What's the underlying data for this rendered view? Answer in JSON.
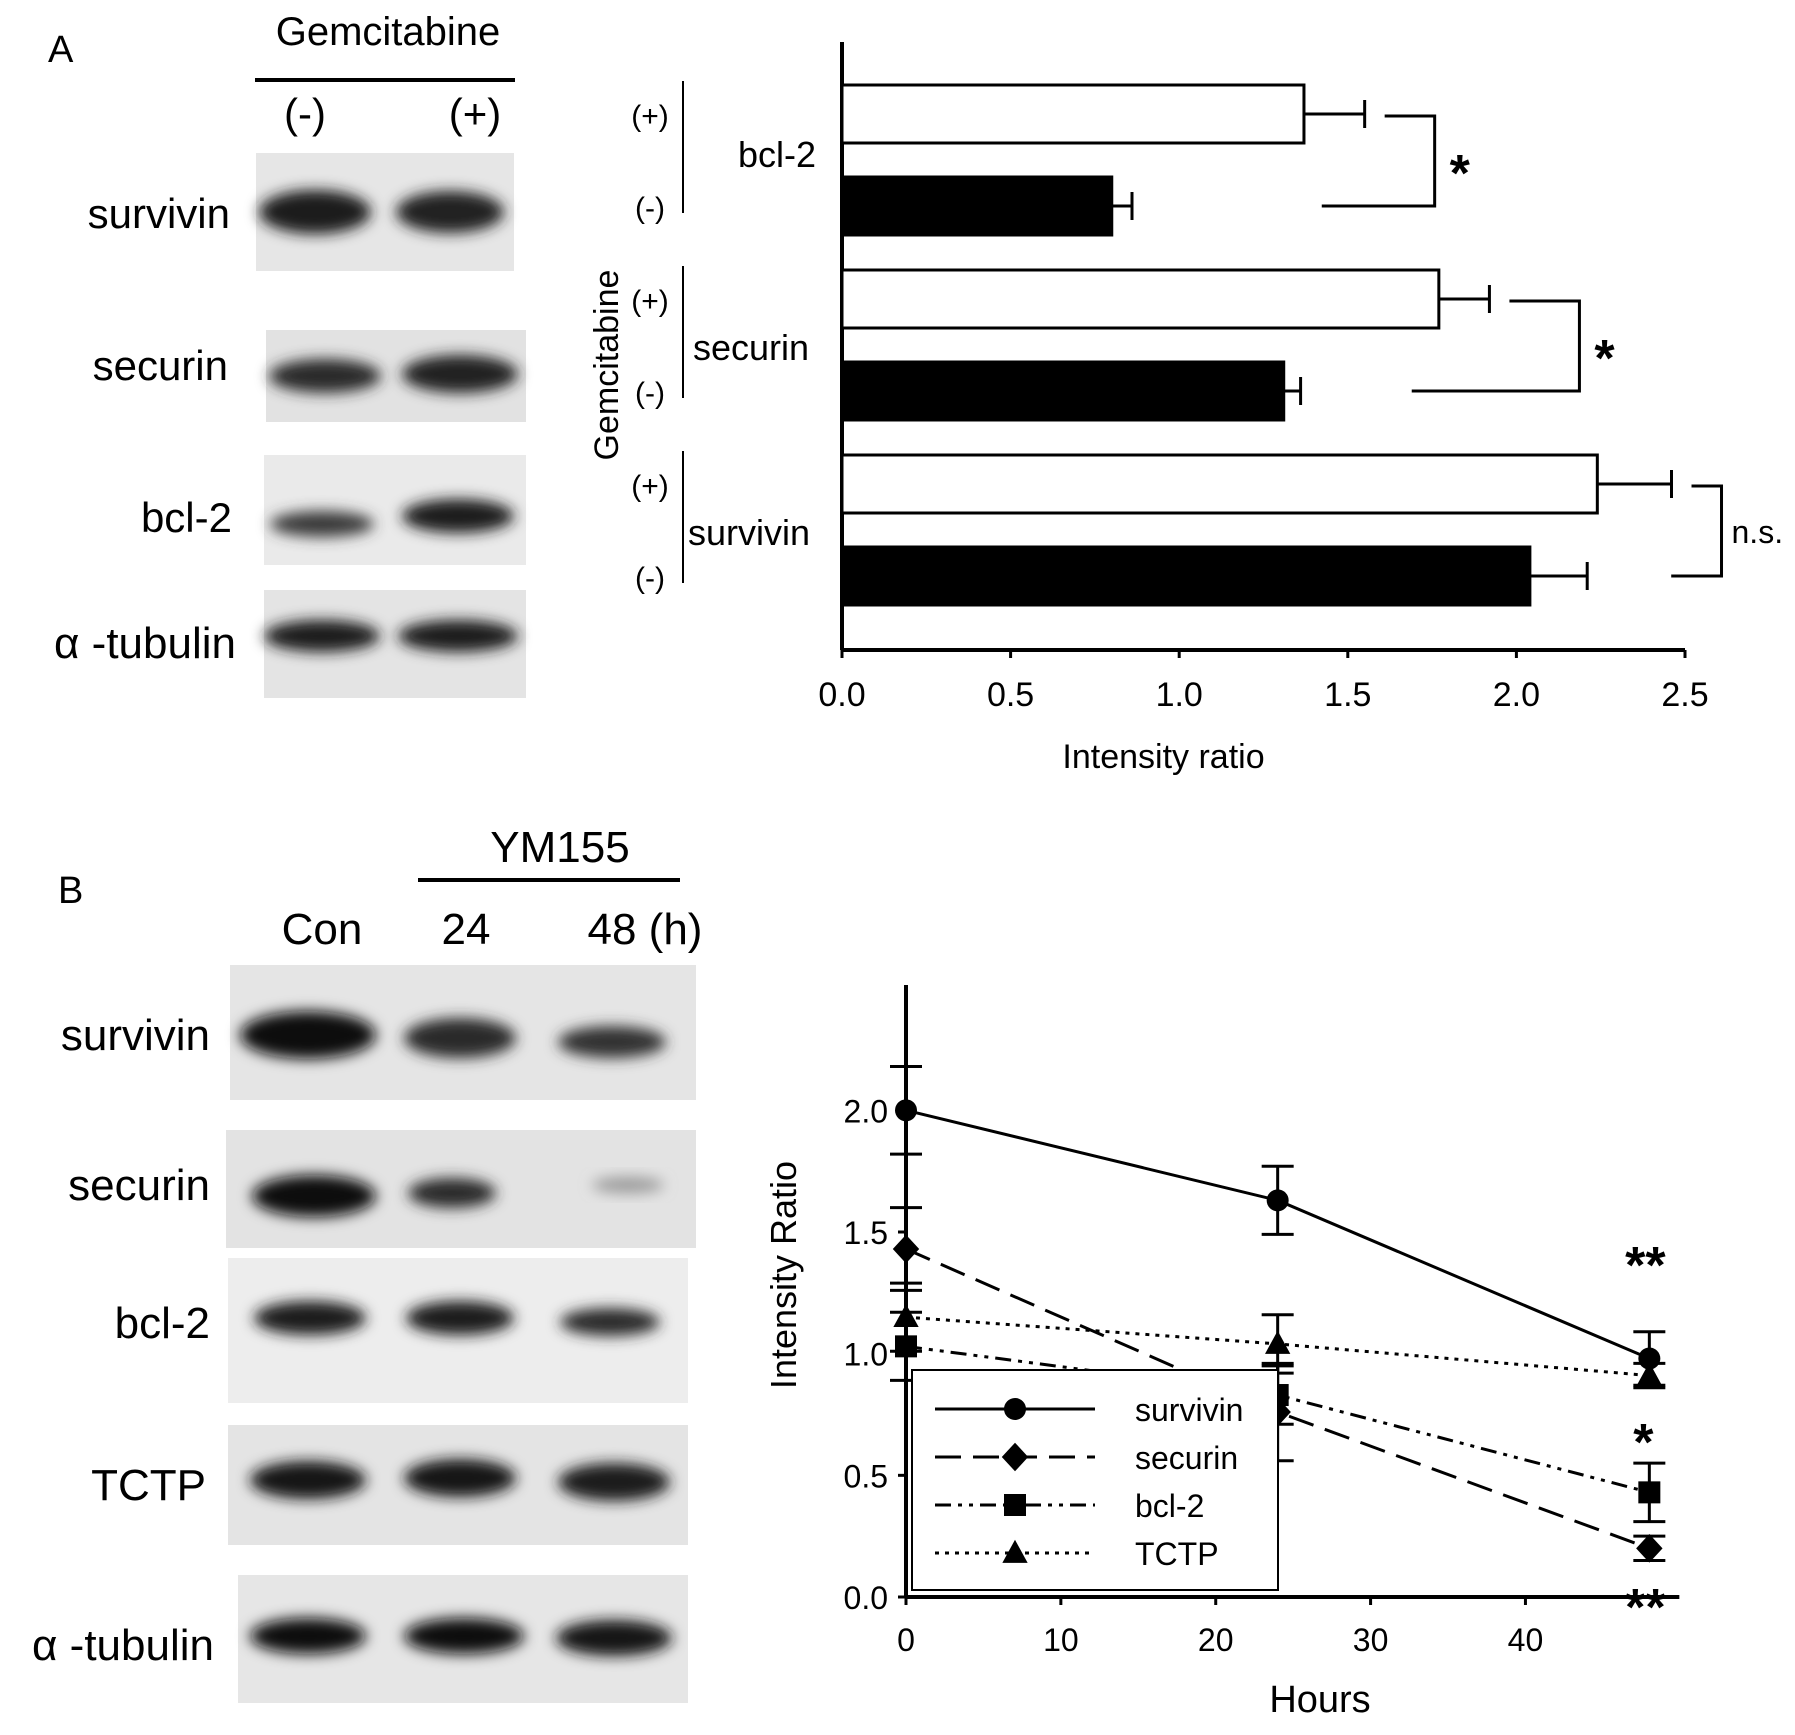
{
  "panelA": {
    "letter": "A",
    "blot": {
      "treatment": "Gemcitabine",
      "lanes": [
        "(-)",
        "(+)"
      ],
      "rows": [
        "survivin",
        "securin",
        "bcl-2",
        "α -tubulin"
      ]
    }
  },
  "panelB": {
    "letter": "B",
    "blot": {
      "treatment": "YM155",
      "lanes": [
        "Con",
        "24",
        "48 (h)"
      ],
      "rows": [
        "survivin",
        "securin",
        "bcl-2",
        "TCTP",
        "α -tubulin"
      ]
    }
  },
  "chart_data": [
    {
      "type": "bar",
      "orientation": "horizontal",
      "xlabel": "Intensity ratio",
      "ylabel": "Gemcitabine",
      "xlim": [
        0,
        2.5
      ],
      "xticks": [
        "0.0",
        "0.5",
        "1.0",
        "1.5",
        "2.0",
        "2.5"
      ],
      "groups": [
        "bcl-2",
        "securin",
        "survivin"
      ],
      "series": [
        {
          "name": "(+)",
          "fill": "#ffffff",
          "values": [
            1.37,
            1.77,
            2.24
          ],
          "errors": [
            0.18,
            0.15,
            0.22
          ]
        },
        {
          "name": "(-)",
          "fill": "#000000",
          "values": [
            0.8,
            1.31,
            2.04
          ],
          "errors": [
            0.06,
            0.05,
            0.17
          ]
        }
      ],
      "significance": [
        "*",
        "*",
        "n.s."
      ]
    },
    {
      "type": "line",
      "xlabel": "Hours",
      "ylabel": "Intensity Ratio",
      "xlim": [
        0,
        48
      ],
      "ylim": [
        0,
        2.2
      ],
      "xticks": [
        "0",
        "10",
        "20",
        "30",
        "40"
      ],
      "yticks": [
        "0.0",
        "0.5",
        "1.0",
        "1.5",
        "2.0"
      ],
      "x": [
        0,
        24,
        48
      ],
      "series": [
        {
          "name": "survivin",
          "marker": "circle",
          "dash": "solid",
          "values": [
            2.0,
            1.63,
            0.98
          ],
          "errors": [
            0.18,
            0.14,
            0.11
          ]
        },
        {
          "name": "securin",
          "marker": "diamond",
          "dash": "dashed",
          "values": [
            1.43,
            0.76,
            0.2
          ],
          "errors": [
            0.17,
            0.2,
            0.05
          ]
        },
        {
          "name": "bcl-2",
          "marker": "square",
          "dash": "dashdotdot",
          "values": [
            1.03,
            0.83,
            0.43
          ],
          "errors": [
            0.14,
            0.12,
            0.12
          ]
        },
        {
          "name": "TCTP",
          "marker": "triangle",
          "dash": "dotted",
          "values": [
            1.15,
            1.04,
            0.91
          ],
          "errors": [
            0.14,
            0.12,
            0.05
          ]
        }
      ],
      "annotations": [
        "**",
        "*",
        "**"
      ]
    }
  ]
}
